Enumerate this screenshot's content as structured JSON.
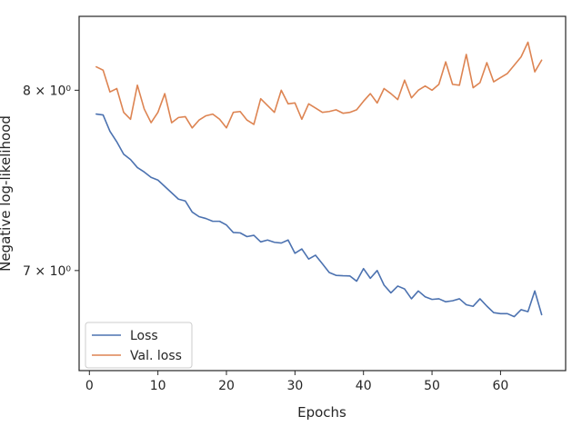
{
  "chart_data": {
    "type": "line",
    "xlabel": "Epochs",
    "ylabel": "Negative log-likelihood",
    "yscale": "log",
    "xlim": [
      -1.5,
      69.5
    ],
    "ylim": [
      6.5,
      8.45
    ],
    "xticks": [
      0,
      10,
      20,
      30,
      40,
      50,
      60
    ],
    "xtick_labels": [
      "0",
      "10",
      "20",
      "30",
      "40",
      "50",
      "60"
    ],
    "yticks": [
      7,
      8
    ],
    "ytick_labels": [
      "7 × 10⁰",
      "8 × 10⁰"
    ],
    "grid": false,
    "legend_position": "lower-left",
    "x": [
      1,
      2,
      3,
      4,
      5,
      6,
      7,
      8,
      9,
      10,
      11,
      12,
      13,
      14,
      15,
      16,
      17,
      18,
      19,
      20,
      21,
      22,
      23,
      24,
      25,
      26,
      27,
      28,
      29,
      30,
      31,
      32,
      33,
      34,
      35,
      36,
      37,
      38,
      39,
      40,
      41,
      42,
      43,
      44,
      45,
      46,
      47,
      48,
      49,
      50,
      51,
      52,
      53,
      54,
      55,
      56,
      57,
      58,
      59,
      60,
      61,
      62,
      63,
      64,
      65,
      66
    ],
    "series": [
      {
        "name": "Loss",
        "color": "#4c72b0",
        "values": [
          7.86,
          7.855,
          7.76,
          7.7,
          7.63,
          7.6,
          7.555,
          7.53,
          7.5,
          7.485,
          7.45,
          7.415,
          7.38,
          7.37,
          7.31,
          7.285,
          7.275,
          7.26,
          7.26,
          7.24,
          7.2,
          7.198,
          7.178,
          7.185,
          7.15,
          7.16,
          7.148,
          7.144,
          7.16,
          7.09,
          7.113,
          7.06,
          7.08,
          7.035,
          6.99,
          6.975,
          6.973,
          6.972,
          6.945,
          7.01,
          6.96,
          7.0,
          6.925,
          6.885,
          6.92,
          6.905,
          6.855,
          6.895,
          6.865,
          6.852,
          6.855,
          6.84,
          6.845,
          6.855,
          6.825,
          6.817,
          6.855,
          6.818,
          6.785,
          6.78,
          6.78,
          6.765,
          6.8,
          6.79,
          6.895,
          6.775
        ]
      },
      {
        "name": "Val. loss",
        "color": "#dd8452",
        "values": [
          8.14,
          8.12,
          7.99,
          8.01,
          7.87,
          7.83,
          8.03,
          7.89,
          7.81,
          7.87,
          7.98,
          7.81,
          7.84,
          7.845,
          7.78,
          7.825,
          7.85,
          7.86,
          7.83,
          7.78,
          7.87,
          7.875,
          7.825,
          7.8,
          7.95,
          7.91,
          7.87,
          8.0,
          7.92,
          7.925,
          7.83,
          7.92,
          7.895,
          7.87,
          7.875,
          7.885,
          7.865,
          7.87,
          7.885,
          7.935,
          7.98,
          7.925,
          8.01,
          7.98,
          7.945,
          8.06,
          7.955,
          8.0,
          8.025,
          8.0,
          8.035,
          8.17,
          8.035,
          8.03,
          8.215,
          8.015,
          8.045,
          8.165,
          8.05,
          8.075,
          8.1,
          8.15,
          8.2,
          8.29,
          8.11,
          8.18
        ]
      }
    ]
  }
}
